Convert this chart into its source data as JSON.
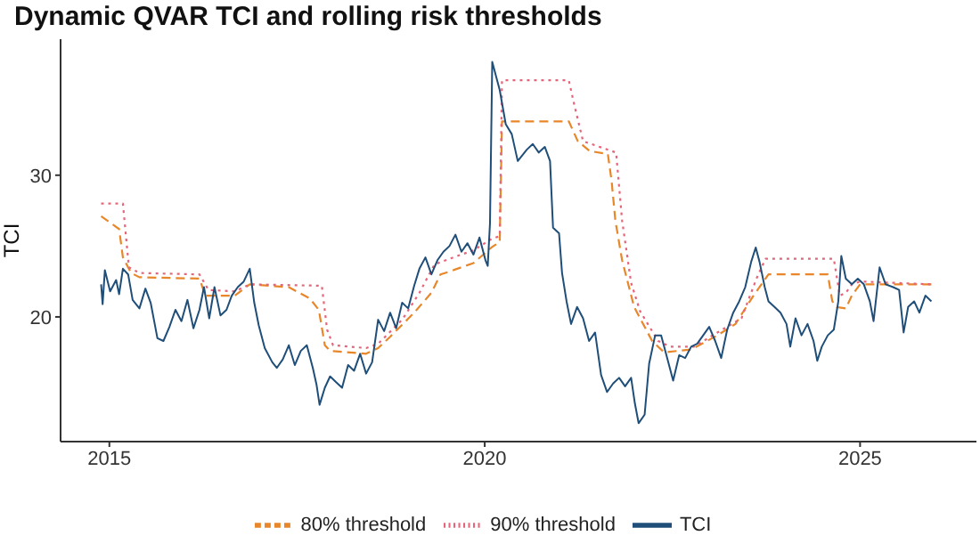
{
  "chart_data": {
    "type": "line",
    "title": "Dynamic QVAR TCI and rolling risk thresholds",
    "ylabel": "TCI",
    "xlim": [
      2014.35,
      2026.55
    ],
    "xticks": [
      2015,
      2020,
      2025
    ],
    "ylim": [
      11.2,
      39.6
    ],
    "yticks": [
      20,
      30
    ],
    "grid": false,
    "legend": "bottom",
    "marker": "none",
    "series": [
      {
        "name": "80% threshold",
        "color": "#e8872a",
        "line_style": "dashed",
        "x": [
          2014.89,
          2015.13,
          2015.18,
          2015.29,
          2015.4,
          2016.2,
          2016.28,
          2016.67,
          2016.87,
          2017.39,
          2017.67,
          2017.79,
          2017.87,
          2017.94,
          2018.42,
          2018.58,
          2018.74,
          2019.06,
          2019.29,
          2019.41,
          2019.53,
          2019.85,
          2020.09,
          2020.2,
          2020.23,
          2021.12,
          2021.24,
          2021.4,
          2021.64,
          2021.69,
          2021.74,
          2021.83,
          2021.99,
          2022.23,
          2022.39,
          2022.75,
          2023.1,
          2023.34,
          2023.58,
          2023.78,
          2024.57,
          2024.63,
          2024.69,
          2024.81,
          2024.89,
          2025.0,
          2025.95
        ],
        "values": [
          27.1,
          26.2,
          24.2,
          23.1,
          22.8,
          22.7,
          21.5,
          21.5,
          22.3,
          22.1,
          21.3,
          20.5,
          18.0,
          17.6,
          17.4,
          17.8,
          18.6,
          20.3,
          21.7,
          23.0,
          23.2,
          23.8,
          24.9,
          25.3,
          33.8,
          33.8,
          32.4,
          31.7,
          31.5,
          29.6,
          26.8,
          24.0,
          20.7,
          18.3,
          17.5,
          17.7,
          18.7,
          19.5,
          21.5,
          23.0,
          23.0,
          21.1,
          20.7,
          20.6,
          21.5,
          22.3,
          22.3
        ]
      },
      {
        "name": "90% threshold",
        "color": "#e7657a",
        "line_style": "dotted",
        "x": [
          2014.89,
          2015.18,
          2015.26,
          2015.4,
          2016.2,
          2016.32,
          2016.67,
          2016.87,
          2017.83,
          2017.9,
          2017.98,
          2018.42,
          2018.58,
          2018.9,
          2019.13,
          2019.33,
          2019.53,
          2019.85,
          2020.09,
          2020.2,
          2020.23,
          2021.12,
          2021.2,
          2021.31,
          2021.75,
          2021.83,
          2021.95,
          2022.07,
          2022.31,
          2022.47,
          2022.79,
          2023.1,
          2023.42,
          2023.62,
          2023.74,
          2024.65,
          2024.73,
          2024.81,
          2024.89,
          2025.0,
          2025.95
        ],
        "values": [
          28.0,
          28.0,
          23.5,
          23.1,
          23.0,
          21.9,
          21.8,
          22.3,
          22.2,
          19.1,
          18.0,
          17.8,
          18.1,
          19.8,
          21.7,
          23.7,
          24.1,
          24.7,
          25.5,
          25.7,
          36.7,
          36.7,
          34.8,
          32.4,
          31.6,
          26.8,
          22.4,
          20.4,
          18.3,
          17.9,
          17.9,
          18.9,
          19.9,
          22.7,
          24.1,
          24.1,
          21.5,
          21.7,
          22.3,
          22.5,
          22.3
        ]
      },
      {
        "name": "TCI",
        "color": "#1f4e79",
        "line_style": "solid",
        "x": [
          2014.89,
          2014.91,
          2014.94,
          2015.01,
          2015.09,
          2015.13,
          2015.18,
          2015.25,
          2015.31,
          2015.4,
          2015.48,
          2015.55,
          2015.64,
          2015.72,
          2015.8,
          2015.88,
          2015.96,
          2016.04,
          2016.12,
          2016.2,
          2016.26,
          2016.33,
          2016.4,
          2016.48,
          2016.56,
          2016.63,
          2016.71,
          2016.79,
          2016.87,
          2016.93,
          2016.99,
          2017.07,
          2017.17,
          2017.23,
          2017.31,
          2017.39,
          2017.47,
          2017.55,
          2017.63,
          2017.71,
          2017.76,
          2017.8,
          2017.87,
          2017.94,
          2018.02,
          2018.1,
          2018.18,
          2018.26,
          2018.34,
          2018.42,
          2018.5,
          2018.58,
          2018.66,
          2018.74,
          2018.82,
          2018.9,
          2018.98,
          2019.06,
          2019.13,
          2019.21,
          2019.29,
          2019.37,
          2019.45,
          2019.53,
          2019.61,
          2019.69,
          2019.77,
          2019.85,
          2019.93,
          2020.01,
          2020.04,
          2020.07,
          2020.1,
          2020.2,
          2020.28,
          2020.36,
          2020.44,
          2020.56,
          2020.64,
          2020.72,
          2020.8,
          2020.87,
          2020.91,
          2020.99,
          2021.03,
          2021.09,
          2021.15,
          2021.23,
          2021.31,
          2021.39,
          2021.47,
          2021.55,
          2021.63,
          2021.71,
          2021.79,
          2021.87,
          2021.95,
          2022.0,
          2022.05,
          2022.13,
          2022.19,
          2022.27,
          2022.35,
          2022.43,
          2022.51,
          2022.59,
          2022.67,
          2022.75,
          2022.83,
          2022.91,
          2022.99,
          2023.07,
          2023.15,
          2023.23,
          2023.31,
          2023.39,
          2023.47,
          2023.55,
          2023.61,
          2023.66,
          2023.73,
          2023.78,
          2023.86,
          2023.94,
          2024.02,
          2024.07,
          2024.14,
          2024.22,
          2024.3,
          2024.38,
          2024.43,
          2024.49,
          2024.57,
          2024.65,
          2024.71,
          2024.75,
          2024.81,
          2024.89,
          2024.97,
          2025.05,
          2025.13,
          2025.18,
          2025.26,
          2025.34,
          2025.44,
          2025.52,
          2025.58,
          2025.64,
          2025.72,
          2025.79,
          2025.87,
          2025.95
        ],
        "values": [
          22.3,
          20.9,
          23.3,
          21.8,
          22.6,
          21.6,
          23.4,
          23.0,
          21.2,
          20.6,
          22.0,
          21.0,
          18.5,
          18.3,
          19.3,
          20.5,
          19.7,
          21.2,
          19.2,
          20.5,
          22.1,
          19.9,
          22.1,
          20.1,
          20.5,
          21.5,
          22.1,
          22.5,
          23.4,
          21.0,
          19.4,
          17.8,
          16.8,
          16.4,
          17.0,
          18.0,
          16.6,
          17.6,
          18.0,
          16.4,
          15.2,
          13.8,
          15.0,
          15.8,
          15.4,
          15.0,
          16.6,
          16.2,
          17.4,
          16.0,
          16.8,
          19.8,
          19.0,
          20.3,
          19.2,
          21.0,
          20.6,
          22.2,
          23.4,
          24.2,
          23.0,
          24.0,
          24.6,
          25.0,
          25.8,
          24.6,
          25.2,
          24.4,
          25.6,
          24.0,
          23.6,
          26.6,
          38.0,
          36.0,
          33.6,
          32.9,
          31.0,
          31.8,
          32.2,
          31.6,
          32.0,
          31.0,
          26.3,
          25.9,
          23.1,
          21.1,
          19.5,
          20.7,
          19.9,
          18.3,
          18.9,
          15.9,
          14.7,
          15.3,
          15.7,
          15.1,
          15.7,
          13.9,
          12.5,
          13.1,
          16.7,
          18.7,
          18.7,
          17.1,
          15.5,
          17.3,
          17.1,
          17.9,
          18.1,
          18.7,
          19.3,
          18.3,
          17.1,
          19.1,
          20.3,
          21.1,
          22.1,
          23.9,
          24.9,
          23.9,
          22.1,
          21.1,
          20.7,
          20.3,
          19.5,
          17.9,
          19.9,
          18.7,
          19.5,
          18.3,
          16.9,
          17.9,
          18.7,
          19.1,
          21.1,
          24.3,
          22.7,
          22.3,
          22.7,
          22.3,
          21.1,
          19.7,
          23.5,
          22.3,
          22.1,
          21.9,
          18.9,
          20.7,
          21.1,
          20.3,
          21.5,
          21.1
        ]
      }
    ]
  }
}
